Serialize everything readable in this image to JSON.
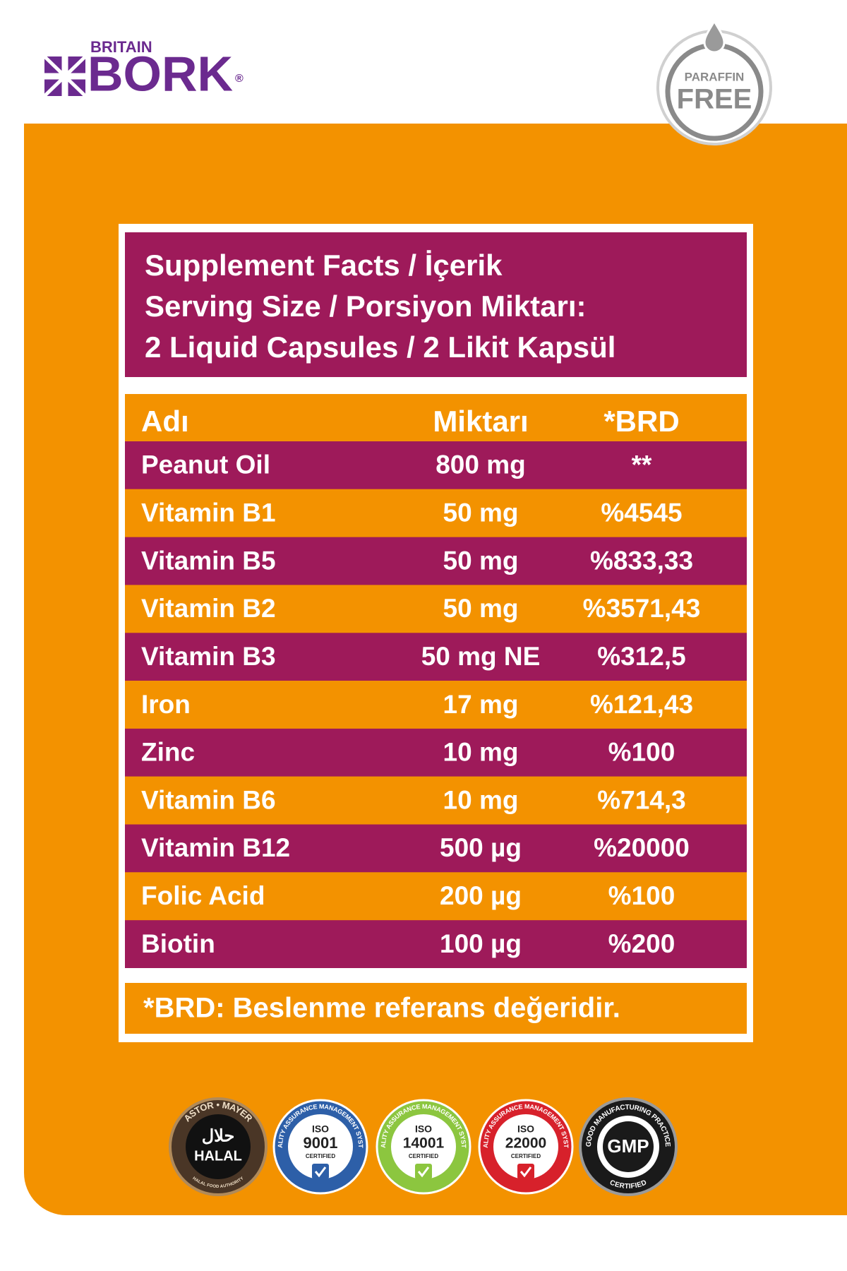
{
  "logo": {
    "brand_top": "BRITAIN",
    "brand": "BORK",
    "registered": "®"
  },
  "badge": {
    "line1": "PARAFFIN",
    "line2": "FREE"
  },
  "panel": {
    "title_lines": [
      "Supplement Facts / İçerik",
      "Serving Size / Porsiyon Miktarı:",
      "2 Liquid Capsules / 2 Likit Kapsül"
    ],
    "table": {
      "headers": [
        "Adı",
        "Miktarı",
        "*BRD"
      ],
      "rows": [
        [
          "Peanut Oil",
          "800 mg",
          "**"
        ],
        [
          "Vitamin B1",
          "50 mg",
          "%4545"
        ],
        [
          "Vitamin B5",
          "50 mg",
          "%833,33"
        ],
        [
          "Vitamin B2",
          "50 mg",
          "%3571,43"
        ],
        [
          "Vitamin B3",
          "50 mg NE",
          "%312,5"
        ],
        [
          "Iron",
          "17 mg",
          "%121,43"
        ],
        [
          "Zinc",
          "10 mg",
          "%100"
        ],
        [
          "Vitamin B6",
          "10 mg",
          "%714,3"
        ],
        [
          "Vitamin B12",
          "500 µg",
          "%20000"
        ],
        [
          "Folic Acid",
          "200 µg",
          "%100"
        ],
        [
          "Biotin",
          "100 µg",
          "%200"
        ]
      ]
    },
    "footnote": "*BRD: Beslenme referans değeridir."
  },
  "certifications": [
    {
      "ring": "ASTOR • MAYER",
      "arabic": "حلال",
      "label": "HALAL",
      "bottom": "HALAL FOOD AUTHORITY"
    },
    {
      "ring": "QUALITY ASSURANCE MANAGEMENT SYSTEM",
      "iso": "ISO",
      "number": "9001",
      "status": "CERTIFIED"
    },
    {
      "ring": "QUALITY ASSURANCE MANAGEMENT SYSTEM",
      "iso": "ISO",
      "number": "14001",
      "status": "CERTIFIED"
    },
    {
      "ring": "QUALITY ASSURANCE MANAGEMENT SYSTEM",
      "iso": "ISO",
      "number": "22000",
      "status": "CERTIFIED"
    },
    {
      "ring": "GOOD MANUFACTURING PRACTICE",
      "label": "GMP",
      "status": "CERTIFIED"
    }
  ]
}
